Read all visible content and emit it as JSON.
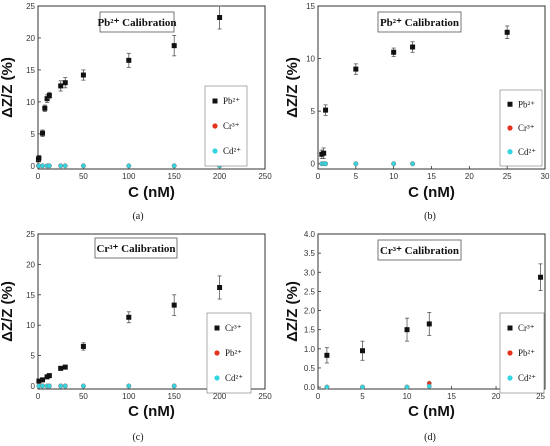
{
  "colors": {
    "pb": "#111111",
    "cr": "#e5321e",
    "cd": "#33d6e0",
    "axis": "#333333"
  },
  "chart_data": [
    {
      "caption": "(a)",
      "type": "scatter",
      "title": "Pb²⁺ Calibration",
      "xlabel": "C (nM)",
      "ylabel": "ΔZ/Z (%)",
      "xlim": [
        0,
        250
      ],
      "ylim": [
        -0.5,
        25
      ],
      "xticks": [
        0,
        50,
        100,
        150,
        200,
        250
      ],
      "yticks": [
        0,
        5,
        10,
        15,
        20,
        25
      ],
      "xtick_labels": [
        "0",
        "50",
        "100",
        "150",
        "200",
        "250"
      ],
      "ytick_labels": [
        "0",
        "5",
        "10",
        "15",
        "20",
        "25"
      ],
      "legend_position": "right",
      "series": [
        {
          "name": "Pb²⁺",
          "color": "#111111",
          "marker": "square",
          "x": [
            0.5,
            1,
            5,
            7.5,
            10,
            12.5,
            25,
            30,
            50,
            100,
            150,
            200
          ],
          "y": [
            1.0,
            1.2,
            5.1,
            9.0,
            10.5,
            11.0,
            12.5,
            13.0,
            14.2,
            16.5,
            18.8,
            23.2
          ],
          "err": [
            0.4,
            0.4,
            0.5,
            0.5,
            0.6,
            0.5,
            0.8,
            0.8,
            0.8,
            1.1,
            1.6,
            1.8
          ]
        },
        {
          "name": "Cr³⁺",
          "color": "#e5321e",
          "marker": "circle",
          "x": [
            0.5,
            1,
            5,
            10,
            12.5,
            25,
            30,
            50,
            100,
            150,
            200
          ],
          "y": [
            0,
            0,
            0,
            0,
            0,
            0,
            0,
            0,
            0,
            0,
            0
          ],
          "err": []
        },
        {
          "name": "Cd²⁺",
          "color": "#33d6e0",
          "marker": "circle",
          "x": [
            0.5,
            1,
            5,
            10,
            12.5,
            25,
            30,
            50,
            100,
            150,
            200
          ],
          "y": [
            0,
            0,
            0,
            0,
            0,
            0,
            0,
            0,
            0,
            0,
            0
          ],
          "err": []
        }
      ]
    },
    {
      "caption": "(b)",
      "type": "scatter",
      "title": "Pb²⁺ Calibration",
      "xlabel": "C (nM)",
      "ylabel": "ΔZ/Z (%)",
      "xlim": [
        0,
        30
      ],
      "ylim": [
        -0.5,
        15
      ],
      "xticks": [
        0,
        5,
        10,
        15,
        20,
        25,
        30
      ],
      "yticks": [
        0,
        5,
        10,
        15
      ],
      "xtick_labels": [
        "0",
        "5",
        "10",
        "15",
        "20",
        "25",
        "30"
      ],
      "ytick_labels": [
        "0",
        "5",
        "10",
        "15"
      ],
      "legend_position": "right",
      "series": [
        {
          "name": "Pb²⁺",
          "color": "#111111",
          "marker": "square",
          "x": [
            0.5,
            0.75,
            1,
            5,
            10,
            12.5,
            25
          ],
          "y": [
            0.9,
            1.0,
            5.1,
            9.0,
            10.6,
            11.1,
            12.5
          ],
          "err": [
            0.4,
            0.5,
            0.5,
            0.5,
            0.4,
            0.5,
            0.6
          ]
        },
        {
          "name": "Cr³⁺",
          "color": "#e5321e",
          "marker": "circle",
          "x": [
            0.5,
            0.75,
            1,
            5,
            10,
            12.5,
            25
          ],
          "y": [
            0,
            0,
            0,
            0,
            0,
            0,
            0
          ],
          "err": []
        },
        {
          "name": "Cd²⁺",
          "color": "#33d6e0",
          "marker": "circle",
          "x": [
            0.5,
            0.75,
            1,
            5,
            10,
            12.5,
            25
          ],
          "y": [
            0,
            0,
            0,
            0,
            0,
            0,
            0
          ],
          "err": []
        }
      ]
    },
    {
      "caption": "(c)",
      "type": "scatter",
      "title": "Cr³⁺ Calibration",
      "xlabel": "C (nM)",
      "ylabel": "ΔZ/Z (%)",
      "xlim": [
        0,
        250
      ],
      "ylim": [
        -0.5,
        25
      ],
      "xticks": [
        0,
        50,
        100,
        150,
        200,
        250
      ],
      "yticks": [
        0,
        5,
        10,
        15,
        20,
        25
      ],
      "xtick_labels": [
        "0",
        "50",
        "100",
        "150",
        "200",
        "250"
      ],
      "ytick_labels": [
        "0",
        "5",
        "10",
        "15",
        "20",
        "25"
      ],
      "legend_position": "right",
      "series": [
        {
          "name": "Cr³⁺",
          "color": "#111111",
          "marker": "square",
          "x": [
            1,
            5,
            10,
            12.5,
            25,
            30,
            50,
            100,
            150,
            200
          ],
          "y": [
            0.8,
            1.0,
            1.5,
            1.7,
            2.9,
            3.1,
            6.5,
            11.3,
            13.3,
            16.2
          ],
          "err": [
            0.2,
            0.2,
            0.2,
            0.2,
            0.3,
            0.3,
            0.6,
            0.9,
            1.7,
            1.9
          ]
        },
        {
          "name": "Pb²⁺",
          "color": "#e5321e",
          "marker": "circle",
          "x": [
            1,
            5,
            10,
            12.5,
            25,
            30,
            50,
            100,
            150,
            200
          ],
          "y": [
            0,
            0,
            0,
            0,
            0,
            0,
            0,
            0,
            0,
            0
          ],
          "err": []
        },
        {
          "name": "Cd²⁺",
          "color": "#33d6e0",
          "marker": "circle",
          "x": [
            1,
            5,
            10,
            12.5,
            25,
            30,
            50,
            100,
            150,
            200
          ],
          "y": [
            0,
            0,
            0,
            0,
            0,
            0,
            0,
            0,
            0,
            0
          ],
          "err": []
        }
      ]
    },
    {
      "caption": "(d)",
      "type": "scatter",
      "title": "Cr³⁺ Calibration",
      "xlabel": "C (nM)",
      "ylabel": "ΔZ/Z (%)",
      "xlim": [
        0,
        25.5
      ],
      "ylim": [
        -0.05,
        4.0
      ],
      "xticks": [
        0,
        5,
        10,
        15,
        20,
        25
      ],
      "yticks": [
        0.0,
        0.5,
        1.0,
        1.5,
        2.0,
        2.5,
        3.0,
        3.5,
        4.0
      ],
      "xtick_labels": [
        "0",
        "5",
        "10",
        "15",
        "20",
        "25"
      ],
      "ytick_labels": [
        "0.0",
        "0.5",
        "1.0",
        "1.5",
        "2.0",
        "2.5",
        "3.0",
        "3.5",
        "4.0"
      ],
      "legend_position": "right",
      "series": [
        {
          "name": "Cr³⁺",
          "color": "#111111",
          "marker": "square",
          "x": [
            1,
            5,
            10,
            12.5,
            25
          ],
          "y": [
            0.83,
            0.95,
            1.5,
            1.65,
            2.87
          ],
          "err": [
            0.2,
            0.25,
            0.3,
            0.3,
            0.35
          ]
        },
        {
          "name": "Pb²⁺",
          "color": "#e5321e",
          "marker": "circle",
          "x": [
            1,
            5,
            10,
            12.5,
            25
          ],
          "y": [
            0,
            0,
            0,
            0.1,
            0.1
          ],
          "err": []
        },
        {
          "name": "Cd²⁺",
          "color": "#33d6e0",
          "marker": "circle",
          "x": [
            1,
            5,
            10,
            12.5,
            25
          ],
          "y": [
            0,
            0,
            0,
            0.02,
            0.02
          ],
          "err": []
        }
      ]
    }
  ]
}
